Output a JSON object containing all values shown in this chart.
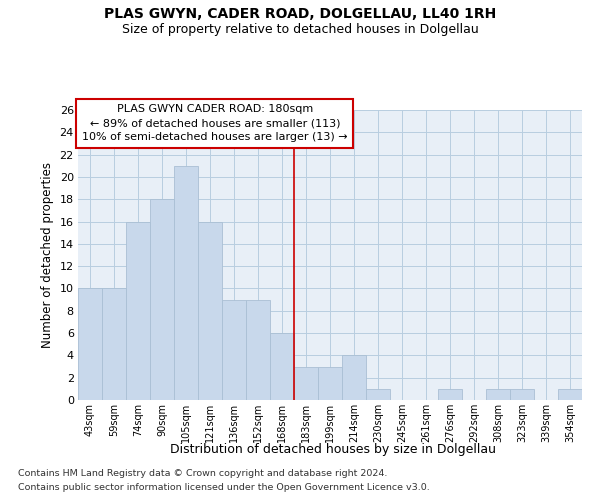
{
  "title": "PLAS GWYN, CADER ROAD, DOLGELLAU, LL40 1RH",
  "subtitle": "Size of property relative to detached houses in Dolgellau",
  "xlabel": "Distribution of detached houses by size in Dolgellau",
  "ylabel": "Number of detached properties",
  "bar_color": "#c8d8eb",
  "bar_edgecolor": "#aabfd4",
  "grid_color": "#b8cde0",
  "background_color": "#e8eff7",
  "categories": [
    "43sqm",
    "59sqm",
    "74sqm",
    "90sqm",
    "105sqm",
    "121sqm",
    "136sqm",
    "152sqm",
    "168sqm",
    "183sqm",
    "199sqm",
    "214sqm",
    "230sqm",
    "245sqm",
    "261sqm",
    "276sqm",
    "292sqm",
    "308sqm",
    "323sqm",
    "339sqm",
    "354sqm"
  ],
  "values": [
    10,
    10,
    16,
    18,
    21,
    16,
    9,
    9,
    6,
    3,
    3,
    4,
    1,
    0,
    0,
    1,
    0,
    1,
    1,
    0,
    1
  ],
  "vline_index": 8.5,
  "vline_color": "#cc0000",
  "ylim": [
    0,
    26
  ],
  "yticks": [
    0,
    2,
    4,
    6,
    8,
    10,
    12,
    14,
    16,
    18,
    20,
    22,
    24,
    26
  ],
  "annotation_title": "PLAS GWYN CADER ROAD: 180sqm",
  "annotation_line1": "← 89% of detached houses are smaller (113)",
  "annotation_line2": "10% of semi-detached houses are larger (13) →",
  "annotation_box_facecolor": "#ffffff",
  "annotation_box_edgecolor": "#cc0000",
  "footer_line1": "Contains HM Land Registry data © Crown copyright and database right 2024.",
  "footer_line2": "Contains public sector information licensed under the Open Government Licence v3.0."
}
